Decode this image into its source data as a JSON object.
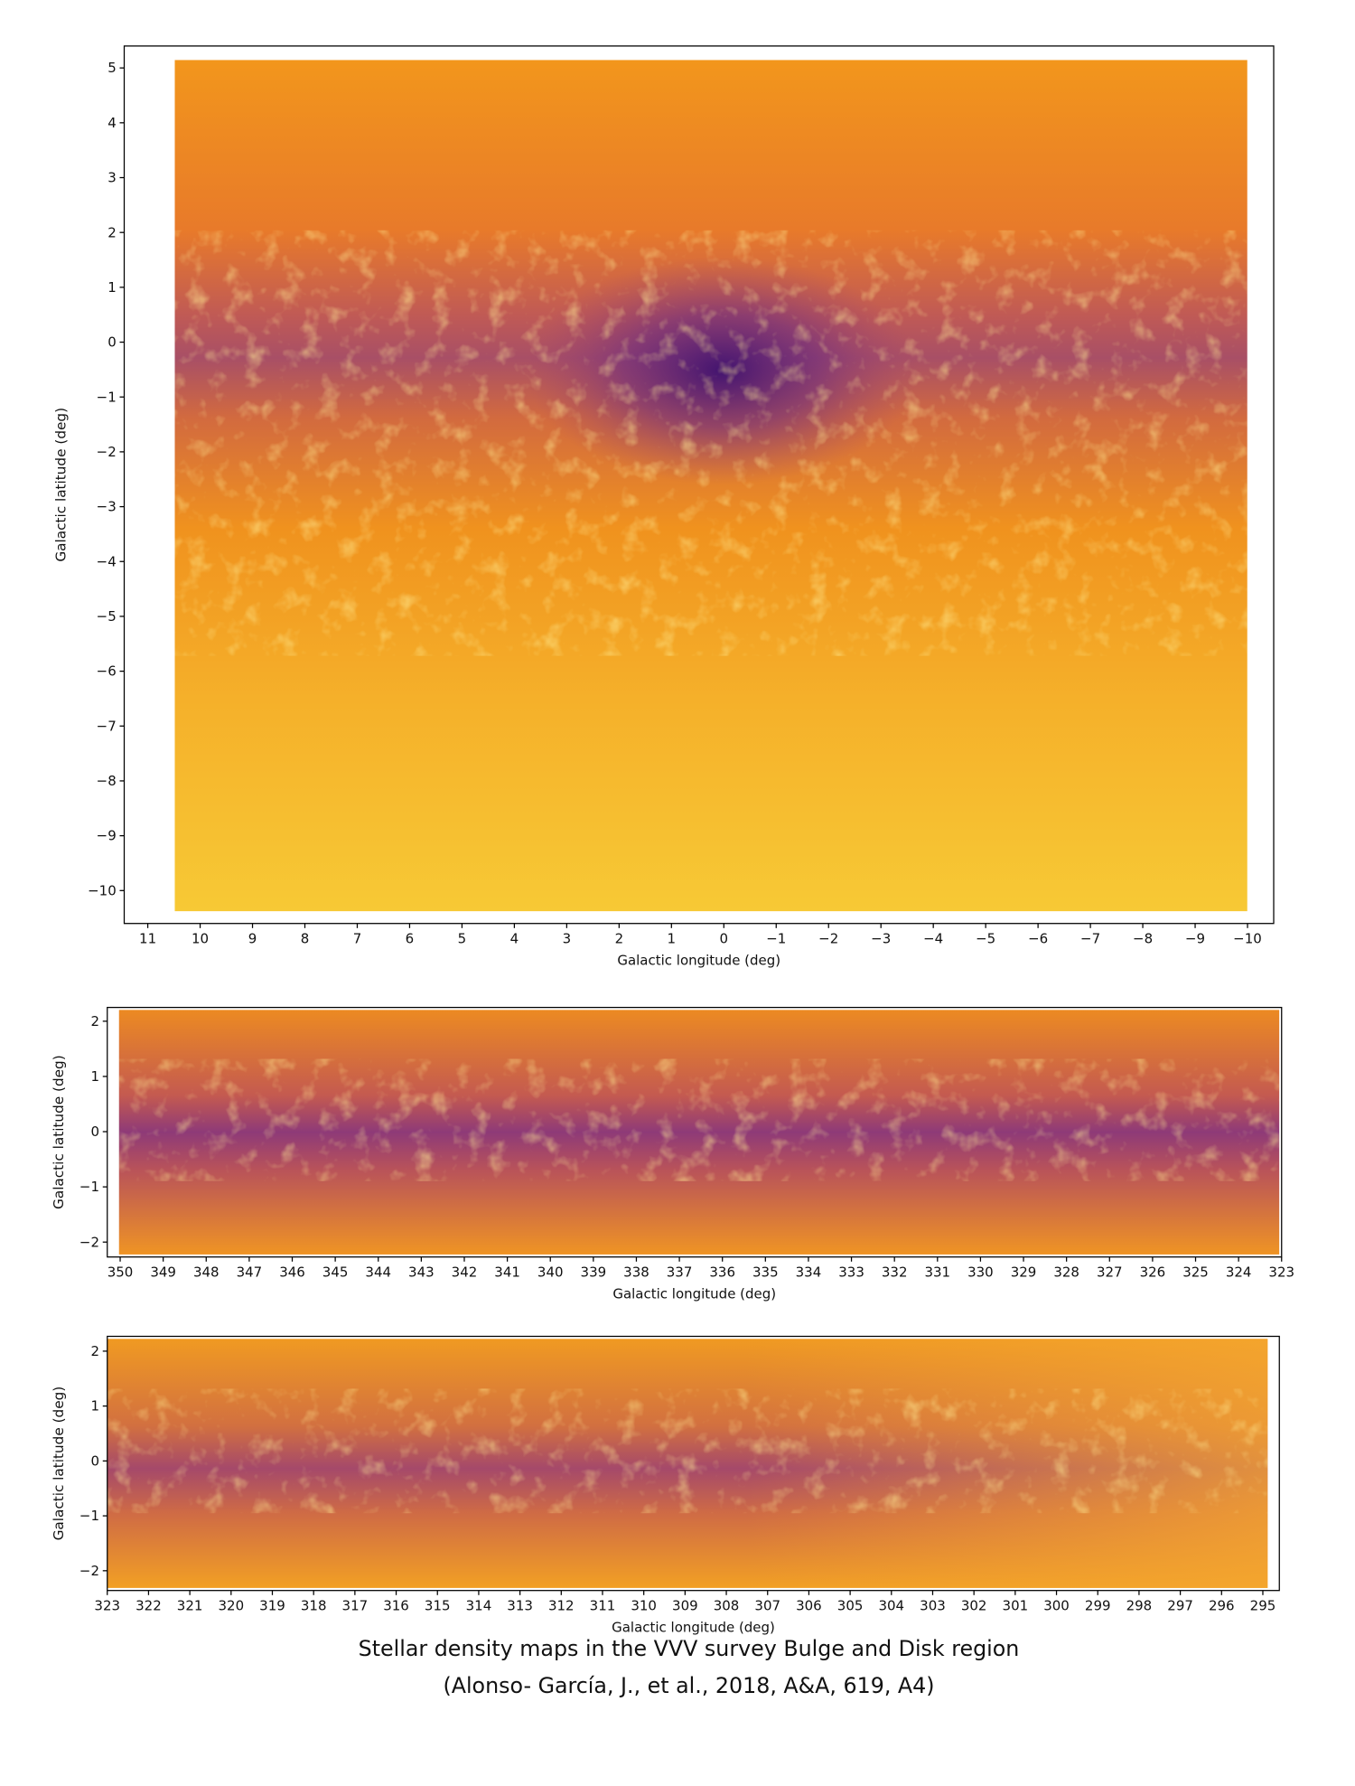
{
  "figures": [
    {
      "x_label": "Galactic longitude (deg)",
      "y_label": "Galactic latitude (deg)",
      "xlim": [
        11.45,
        -10.5
      ],
      "ylim": [
        -10.6,
        5.4
      ],
      "xticks": [
        11,
        10,
        9,
        8,
        7,
        6,
        5,
        4,
        3,
        2,
        1,
        0,
        {
          "value": -1,
          "label": "−1"
        },
        {
          "value": -2,
          "label": "−2"
        },
        {
          "value": -3,
          "label": "−3"
        },
        {
          "value": -4,
          "label": "−4"
        },
        {
          "value": -5,
          "label": "−5"
        },
        {
          "value": -6,
          "label": "−6"
        },
        {
          "value": -7,
          "label": "−7"
        },
        {
          "value": -8,
          "label": "−8"
        },
        {
          "value": -9,
          "label": "−9"
        },
        {
          "value": -10,
          "label": "−10"
        }
      ],
      "yticks": [
        5,
        4,
        3,
        2,
        1,
        0,
        {
          "value": -1,
          "label": "−1"
        },
        {
          "value": -2,
          "label": "−2"
        },
        {
          "value": -3,
          "label": "−3"
        },
        {
          "value": -4,
          "label": "−4"
        },
        {
          "value": -5,
          "label": "−5"
        },
        {
          "value": -6,
          "label": "−6"
        },
        {
          "value": -7,
          "label": "−7"
        },
        {
          "value": -8,
          "label": "−8"
        },
        {
          "value": -9,
          "label": "−9"
        },
        {
          "value": -10,
          "label": "−10"
        }
      ]
    },
    {
      "x_label": "Galactic longitude (deg)",
      "y_label": "Galactic latitude (deg)",
      "xlim": [
        350.3,
        323
      ],
      "ylim": [
        -2.27,
        2.25
      ],
      "xticks": [
        350,
        349,
        348,
        347,
        346,
        345,
        344,
        343,
        342,
        341,
        340,
        339,
        338,
        337,
        336,
        335,
        334,
        333,
        332,
        331,
        330,
        329,
        328,
        327,
        326,
        325,
        324,
        323
      ],
      "yticks": [
        2,
        1,
        0,
        {
          "value": -1,
          "label": "−1"
        },
        {
          "value": -2,
          "label": "−2"
        }
      ]
    },
    {
      "x_label": "Galactic longitude (deg)",
      "y_label": "Galactic latitude (deg)",
      "xlim": [
        323,
        294.6
      ],
      "ylim": [
        -2.36,
        2.27
      ],
      "xticks": [
        323,
        322,
        321,
        320,
        319,
        318,
        317,
        316,
        315,
        314,
        313,
        312,
        311,
        310,
        309,
        308,
        307,
        306,
        305,
        304,
        303,
        302,
        301,
        300,
        299,
        298,
        297,
        296,
        295
      ],
      "yticks": [
        2,
        1,
        0,
        {
          "value": -1,
          "label": "−1"
        },
        {
          "value": -2,
          "label": "−2"
        }
      ]
    }
  ],
  "caption": [
    "Stellar density maps in the VVV survey Bulge and Disk region",
    "(Alonso- García, J., et al., 2018, A&A, 619, A4)"
  ]
}
